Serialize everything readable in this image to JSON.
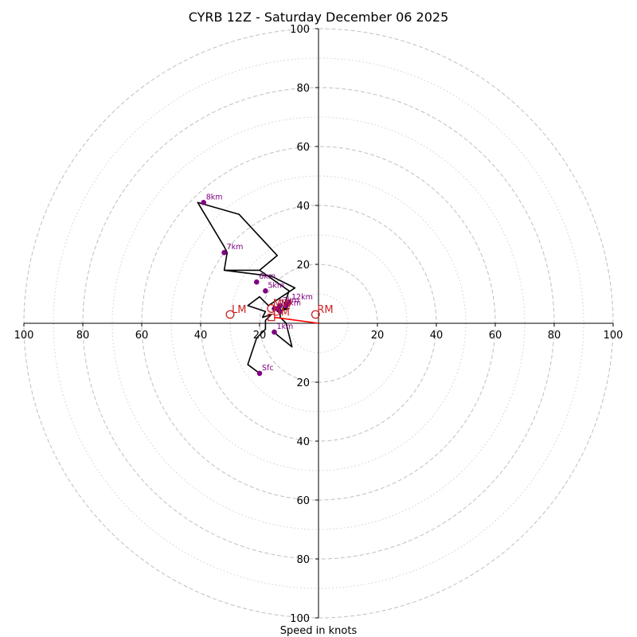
{
  "chart_data": {
    "type": "hodograph",
    "title": "CYRB 12Z - Saturday December 06 2025",
    "xlabel": "Speed in knots",
    "max_speed": 100,
    "ring_major": [
      20,
      40,
      60,
      80,
      100
    ],
    "ring_minor": [
      10,
      30,
      50,
      70,
      90
    ],
    "x_ticks": [
      -100,
      -80,
      -60,
      -40,
      -20,
      20,
      40,
      60,
      80,
      100
    ],
    "y_ticks": [
      -100,
      -80,
      -60,
      -40,
      -20,
      20,
      40,
      60,
      80,
      100
    ],
    "x_tick_labels": [
      "100",
      "80",
      "60",
      "40",
      "20",
      "20",
      "40",
      "60",
      "80",
      "100"
    ],
    "y_tick_labels": [
      "100",
      "80",
      "60",
      "40",
      "20",
      "20",
      "40",
      "60",
      "80",
      "100"
    ],
    "profile": [
      [
        -20,
        -17
      ],
      [
        -24,
        -14
      ],
      [
        -21,
        -5
      ],
      [
        -18,
        -2
      ],
      [
        -18,
        1
      ],
      [
        -16,
        3
      ],
      [
        -19,
        2
      ],
      [
        -18,
        4
      ],
      [
        -24,
        6
      ],
      [
        -20,
        9
      ],
      [
        -17,
        6
      ],
      [
        -14,
        8
      ],
      [
        -8,
        12
      ],
      [
        -16,
        16
      ],
      [
        -32,
        18
      ],
      [
        -20,
        18
      ],
      [
        -14,
        23
      ],
      [
        -27,
        37
      ],
      [
        -41,
        41
      ],
      [
        -32,
        26
      ],
      [
        -31,
        24
      ],
      [
        -32,
        18
      ],
      [
        -20,
        18
      ],
      [
        -10,
        11
      ],
      [
        -12,
        5
      ],
      [
        -10,
        5
      ],
      [
        -14,
        4
      ],
      [
        -13,
        6
      ],
      [
        -13,
        2
      ],
      [
        -11,
        0
      ],
      [
        -9,
        -8
      ],
      [
        -14,
        -4
      ],
      [
        -15,
        -3
      ]
    ],
    "height_markers": [
      {
        "label": "Sfc",
        "u": -20,
        "v": -17
      },
      {
        "label": "1km",
        "u": -15,
        "v": -3
      },
      {
        "label": "3km",
        "u": -13,
        "v": 6
      },
      {
        "label": "5km",
        "u": -18,
        "v": 11
      },
      {
        "label": "6km",
        "u": -21,
        "v": 14
      },
      {
        "label": "7km",
        "u": -32,
        "v": 24
      },
      {
        "label": "8km",
        "u": -39,
        "v": 41
      },
      {
        "label": "10km",
        "u": -14,
        "v": 5
      },
      {
        "label": "12km",
        "u": -10,
        "v": 7
      },
      {
        "label": "",
        "u": -15,
        "v": 5
      },
      {
        "label": "",
        "u": -13,
        "v": 4
      },
      {
        "label": "",
        "u": -11,
        "v": 6
      }
    ],
    "storm_motions": [
      {
        "label": "RM",
        "u": -1,
        "v": 3
      },
      {
        "label": "LM",
        "u": -30,
        "v": 3
      },
      {
        "label": "MW",
        "u": -16,
        "v": 5
      },
      {
        "label": "DM",
        "u": -16,
        "v": 2
      }
    ],
    "shear_vector": {
      "from": [
        -15,
        2
      ],
      "to": [
        0,
        0
      ]
    },
    "colors": {
      "profile": "#000000",
      "markers": "#800080",
      "storm_motion": "#cc2222",
      "shear_vector": "#ff0000",
      "grid": "#bfbfbf",
      "axes": "#000000"
    }
  }
}
